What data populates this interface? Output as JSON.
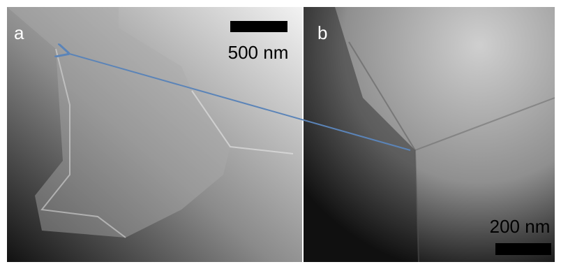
{
  "panels": [
    {
      "label": "a",
      "scale_bar": "500 nm"
    },
    {
      "label": "b",
      "scale_bar": "200 nm"
    }
  ]
}
